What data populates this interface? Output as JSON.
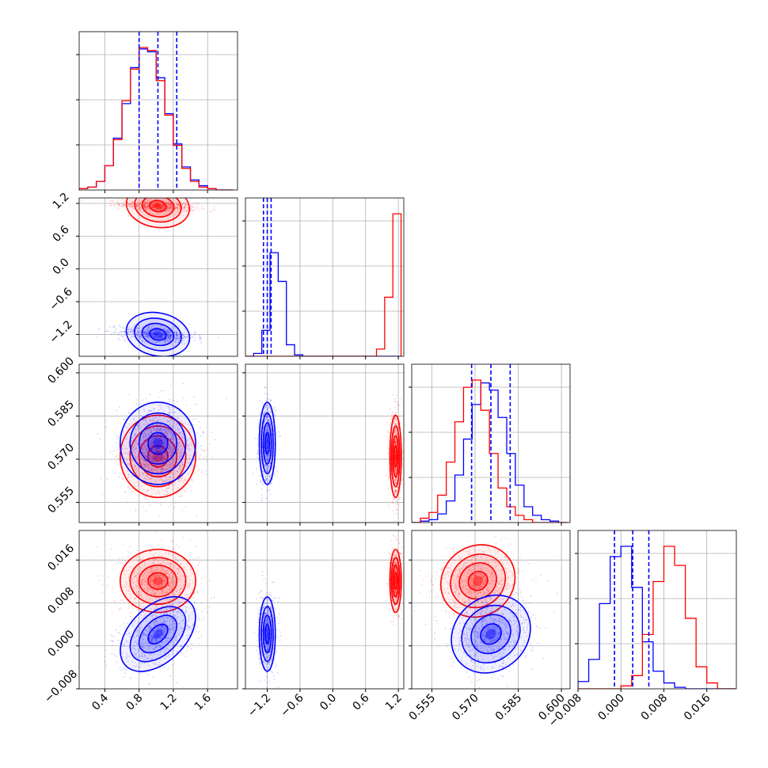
{
  "chart_data": {
    "type": "corner",
    "colors": {
      "series_a": "#0000ff",
      "series_b": "#ff0000",
      "grid": "#b0b0b0"
    },
    "grid": true,
    "parameters": [
      {
        "range": [
          0.1,
          1.95
        ],
        "ticks": [
          "0.4",
          "0.8",
          "1.2",
          "1.6"
        ]
      },
      {
        "range": [
          -1.6,
          1.3
        ],
        "ticks": [
          "−1.2",
          "−0.6",
          "0.0",
          "0.6",
          "1.2"
        ]
      },
      {
        "range": [
          0.548,
          0.603
        ],
        "ticks": [
          "0.555",
          "0.570",
          "0.585",
          "0.600"
        ]
      },
      {
        "range": [
          -0.008,
          0.0215
        ],
        "ticks": [
          "−0.008",
          "0.000",
          "0.008",
          "0.016"
        ]
      }
    ],
    "series": [
      {
        "color": "#0000ff",
        "means": [
          1.02,
          -1.2,
          0.5755,
          0.0022
        ],
        "sds": [
          0.21,
          0.07,
          0.0068,
          0.0033
        ],
        "quantiles": [
          [
            0.8,
            1.02,
            1.24
          ],
          [
            -1.27,
            -1.2,
            -1.13
          ],
          [
            0.5688,
            0.5755,
            0.5822
          ],
          [
            -0.0012,
            0.0022,
            0.0052
          ]
        ]
      },
      {
        "color": "#ff0000",
        "means": [
          1.02,
          1.15,
          0.571,
          0.0121
        ],
        "sds": [
          0.21,
          0.05,
          0.0068,
          0.0028
        ],
        "quantiles": []
      }
    ],
    "histograms": [
      {
        "param": 0,
        "bins": [
          0.1,
          0.2,
          0.3,
          0.4,
          0.5,
          0.6,
          0.7,
          0.8,
          0.9,
          1.0,
          1.1,
          1.2,
          1.3,
          1.4,
          1.5,
          1.6,
          1.7,
          1.8,
          1.9
        ],
        "blue": [
          0.01,
          0.02,
          0.06,
          0.17,
          0.36,
          0.6,
          0.85,
          0.98,
          0.96,
          0.78,
          0.53,
          0.32,
          0.16,
          0.07,
          0.03,
          0.01,
          0.0,
          0.0
        ],
        "red": [
          0.01,
          0.02,
          0.06,
          0.17,
          0.35,
          0.62,
          0.84,
          0.99,
          0.97,
          0.76,
          0.52,
          0.31,
          0.15,
          0.06,
          0.02,
          0.01,
          0.0,
          0.0
        ]
      },
      {
        "param": 1,
        "bins": [
          -1.6,
          -1.45,
          -1.3,
          -1.15,
          -1.0,
          -0.85,
          -0.7,
          -0.55,
          -0.4,
          -0.25,
          -0.1,
          0.05,
          0.2,
          0.35,
          0.5,
          0.65,
          0.8,
          0.95,
          1.1,
          1.25
        ],
        "blue": [
          0.0,
          0.02,
          0.18,
          0.72,
          0.52,
          0.08,
          0.01,
          0.0,
          0.0,
          0.0,
          0.0,
          0.0,
          0.0,
          0.0,
          0.0,
          0.0,
          0.0,
          0.0,
          0.0
        ],
        "red": [
          0.0,
          0.0,
          0.0,
          0.0,
          0.0,
          0.0,
          0.0,
          0.0,
          0.0,
          0.0,
          0.0,
          0.0,
          0.0,
          0.0,
          0.0,
          0.0,
          0.05,
          0.41,
          0.99
        ]
      },
      {
        "param": 2,
        "bins": [
          0.548,
          0.551,
          0.554,
          0.557,
          0.56,
          0.563,
          0.566,
          0.569,
          0.572,
          0.575,
          0.578,
          0.581,
          0.584,
          0.587,
          0.59,
          0.593,
          0.596,
          0.599,
          0.602
        ],
        "blue": [
          0.0,
          0.01,
          0.02,
          0.06,
          0.15,
          0.33,
          0.58,
          0.82,
          0.97,
          0.92,
          0.73,
          0.48,
          0.26,
          0.11,
          0.05,
          0.02,
          0.01,
          0.0
        ],
        "red": [
          0.0,
          0.03,
          0.07,
          0.19,
          0.42,
          0.7,
          0.94,
          0.99,
          0.78,
          0.48,
          0.24,
          0.11,
          0.05,
          0.02,
          0.0,
          0.0,
          0.0,
          0.0
        ]
      },
      {
        "param": 3,
        "bins": [
          -0.008,
          -0.006,
          -0.004,
          -0.002,
          0.0,
          0.002,
          0.004,
          0.006,
          0.008,
          0.01,
          0.012,
          0.014,
          0.016,
          0.018,
          0.02,
          0.022
        ],
        "blue": [
          0.05,
          0.2,
          0.58,
          0.9,
          0.97,
          0.69,
          0.32,
          0.12,
          0.04,
          0.01,
          0.0,
          0.0,
          0.0,
          0.0,
          0.0
        ],
        "red": [
          0.0,
          0.0,
          0.0,
          0.0,
          0.02,
          0.09,
          0.37,
          0.73,
          0.97,
          0.84,
          0.48,
          0.15,
          0.04,
          0.0,
          0.0
        ]
      }
    ],
    "scatter_panels": [
      {
        "row": 1,
        "col": 0,
        "blue_corr": -0.38,
        "red_corr": -0.38
      },
      {
        "row": 2,
        "col": 0,
        "blue_corr": 0.0,
        "red_corr": 0.0
      },
      {
        "row": 2,
        "col": 1,
        "blue_corr": 0.0,
        "red_corr": 0.0
      },
      {
        "row": 3,
        "col": 0,
        "blue_corr": 0.45,
        "red_corr": 0.0
      },
      {
        "row": 3,
        "col": 1,
        "blue_corr": 0.0,
        "red_corr": 0.0
      },
      {
        "row": 3,
        "col": 2,
        "blue_corr": 0.15,
        "red_corr": 0.1
      }
    ]
  }
}
